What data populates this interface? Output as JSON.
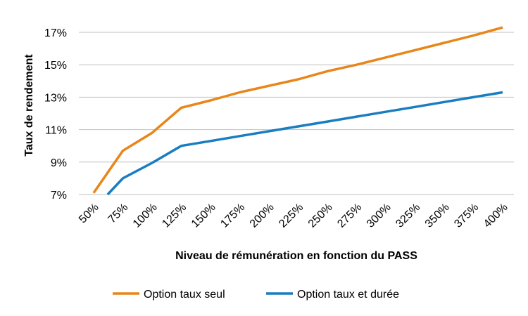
{
  "chart_data": {
    "type": "line",
    "title": "",
    "xlabel": "Niveau de rémunération en fonction du PASS",
    "ylabel": "Taux de rendement",
    "categories": [
      "50%",
      "75%",
      "100%",
      "125%",
      "150%",
      "175%",
      "200%",
      "225%",
      "250%",
      "275%",
      "300%",
      "325%",
      "350%",
      "375%",
      "400%"
    ],
    "y_ticks": [
      "7%",
      "9%",
      "11%",
      "13%",
      "15%",
      "17%"
    ],
    "ylim": [
      7,
      18
    ],
    "y_tick_values": [
      7,
      9,
      11,
      13,
      15,
      17
    ],
    "grid": true,
    "legend_position": "bottom",
    "series": [
      {
        "name": "Option taux seul",
        "color": "#E8861A",
        "points": [
          [
            50,
            7.1
          ],
          [
            75,
            9.7
          ],
          [
            100,
            10.8
          ],
          [
            125,
            12.35
          ],
          [
            150,
            12.8
          ],
          [
            175,
            13.3
          ],
          [
            200,
            13.7
          ],
          [
            225,
            14.1
          ],
          [
            250,
            14.6
          ],
          [
            275,
            15.0
          ],
          [
            300,
            15.45
          ],
          [
            325,
            15.9
          ],
          [
            350,
            16.35
          ],
          [
            375,
            16.8
          ],
          [
            400,
            17.3
          ]
        ]
      },
      {
        "name": "Option taux et durée",
        "color": "#1A7DC1",
        "points": [
          [
            62,
            7.0
          ],
          [
            75,
            8.0
          ],
          [
            100,
            8.95
          ],
          [
            125,
            10.0
          ],
          [
            150,
            10.3
          ],
          [
            175,
            10.6
          ],
          [
            200,
            10.9
          ],
          [
            225,
            11.2
          ],
          [
            250,
            11.5
          ],
          [
            275,
            11.8
          ],
          [
            300,
            12.1
          ],
          [
            325,
            12.4
          ],
          [
            350,
            12.7
          ],
          [
            375,
            13.0
          ],
          [
            400,
            13.3
          ]
        ]
      }
    ]
  }
}
